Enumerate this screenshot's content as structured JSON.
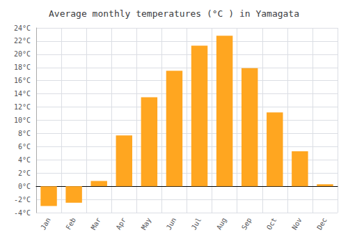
{
  "chart_data": {
    "type": "bar",
    "title": "Average monthly temperatures (°C ) in Yamagata",
    "categories": [
      "Jan",
      "Feb",
      "Mar",
      "Apr",
      "May",
      "Jun",
      "Jul",
      "Aug",
      "Sep",
      "Oct",
      "Nov",
      "Dec"
    ],
    "values": [
      -3.0,
      -2.5,
      0.8,
      7.7,
      13.5,
      17.5,
      21.3,
      22.8,
      17.9,
      11.2,
      5.3,
      0.3
    ],
    "color": "#FFA620",
    "ylim": [
      -4,
      24
    ],
    "yticks": [
      {
        "value": -4,
        "label": "-4°C"
      },
      {
        "value": -2,
        "label": "-2°C"
      },
      {
        "value": 0,
        "label": "0°C"
      },
      {
        "value": 2,
        "label": "2°C"
      },
      {
        "value": 4,
        "label": "4°C"
      },
      {
        "value": 6,
        "label": "6°C"
      },
      {
        "value": 8,
        "label": "8°C"
      },
      {
        "value": 10,
        "label": "10°C"
      },
      {
        "value": 12,
        "label": "12°C"
      },
      {
        "value": 14,
        "label": "14°C"
      },
      {
        "value": 16,
        "label": "16°C"
      },
      {
        "value": 18,
        "label": "18°C"
      },
      {
        "value": 20,
        "label": "20°C"
      },
      {
        "value": 22,
        "label": "22°C"
      },
      {
        "value": 24,
        "label": "24°C"
      }
    ],
    "grid": true
  }
}
